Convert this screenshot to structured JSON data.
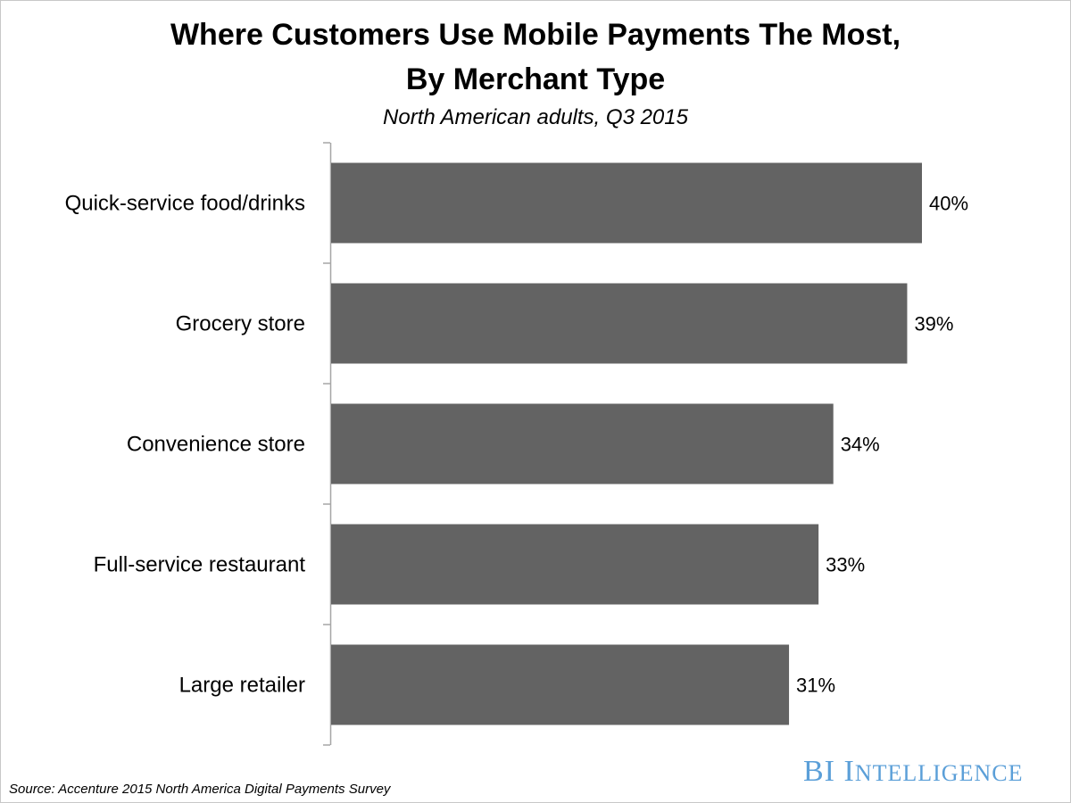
{
  "chart_data": {
    "type": "bar",
    "orientation": "horizontal",
    "title_line1": "Where Customers Use Mobile Payments The Most,",
    "title_line2": "By Merchant Type",
    "subtitle": "North American adults, Q3 2015",
    "categories": [
      "Quick-service food/drinks",
      "Grocery store",
      "Convenience store",
      "Full-service restaurant",
      "Large retailer"
    ],
    "values": [
      40,
      39,
      34,
      33,
      31
    ],
    "value_labels": [
      "40%",
      "39%",
      "34%",
      "33%",
      "31%"
    ],
    "unit": "%",
    "xlabel": "",
    "ylabel": "",
    "xlim": [
      0,
      40
    ],
    "grid": false,
    "bar_color": "#636363",
    "source": "Source: Accenture 2015 North America Digital Payments Survey"
  },
  "branding": {
    "logo_first": "BI",
    "logo_second": "Intelligence",
    "logo_color": "#5b9fd8"
  }
}
